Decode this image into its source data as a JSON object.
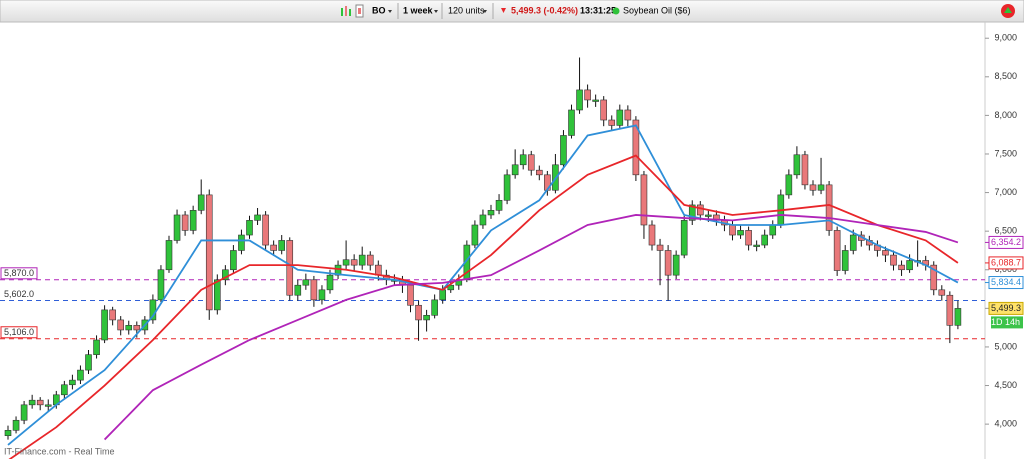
{
  "toolbar": {
    "symbol": "BO",
    "period": "1 week",
    "units": "120 units",
    "price_change": "5,499.3 (-0.42%)",
    "time": "13:31:25",
    "instrument": "Soybean Oil ($6)"
  },
  "footer": "IT-Finance.com - Real Time",
  "chart_data": {
    "type": "candlestick",
    "ylim": [
      3600,
      9210
    ],
    "yticks": [
      {
        "value": 4000,
        "label": "4,000"
      },
      {
        "value": 4500,
        "label": "4,500"
      },
      {
        "value": 5000,
        "label": "5,000"
      },
      {
        "value": 5500,
        "label": "5,500"
      },
      {
        "value": 6000,
        "label": "6,000"
      },
      {
        "value": 6500,
        "label": "6,500"
      },
      {
        "value": 7000,
        "label": "7,000"
      },
      {
        "value": 7500,
        "label": "7,500"
      },
      {
        "value": 8000,
        "label": "8,000"
      },
      {
        "value": 8500,
        "label": "8,500"
      },
      {
        "value": 9000,
        "label": "9,000"
      }
    ],
    "up_color": "#2fc23a",
    "down_color": "#e9787a",
    "open": [
      3850,
      3920,
      4050,
      4250,
      4310,
      4230,
      4250,
      4380,
      4510,
      4570,
      4700,
      4900,
      5090,
      5480,
      5350,
      5220,
      5280,
      5220,
      5350,
      5610,
      6000,
      6380,
      6710,
      6510,
      6770,
      6970,
      5480,
      5870,
      6000,
      6250,
      6450,
      6640,
      6710,
      6320,
      6250,
      6380,
      5670,
      5800,
      5870,
      5610,
      5740,
      5930,
      6060,
      6130,
      6060,
      6190,
      6060,
      5930,
      5850,
      5870,
      5800,
      5540,
      5350,
      5410,
      5610,
      5740,
      5800,
      5870,
      6320,
      6580,
      6710,
      6770,
      6900,
      7230,
      7360,
      7490,
      7290,
      7230,
      7030,
      7360,
      7740,
      8070,
      8330,
      8180,
      8200,
      7940,
      7870,
      8070,
      7940,
      7230,
      6580,
      6320,
      6250,
      5930,
      6190,
      6640,
      6840,
      6690,
      6710,
      6640,
      6580,
      6450,
      6510,
      6300,
      6320,
      6450,
      6580,
      6970,
      7230,
      7490,
      7100,
      7030,
      7100,
      6510,
      5990,
      6250,
      6450,
      6380,
      6320,
      6250,
      6190,
      6060,
      6000,
      6100,
      6120,
      6060,
      5740,
      5670,
      5280
    ],
    "high": [
      3980,
      4100,
      4300,
      4380,
      4350,
      4320,
      4430,
      4560,
      4640,
      4760,
      4960,
      5150,
      5540,
      5520,
      5400,
      5340,
      5330,
      5400,
      5680,
      6060,
      6440,
      6780,
      6760,
      6830,
      7170,
      7040,
      5940,
      6060,
      6320,
      6520,
      6700,
      6800,
      6760,
      6380,
      6450,
      6420,
      5870,
      5950,
      5920,
      5800,
      6000,
      6120,
      6380,
      6200,
      6300,
      6240,
      6120,
      6000,
      5940,
      5920,
      5850,
      5600,
      5480,
      5680,
      5800,
      5870,
      5940,
      6380,
      6640,
      6780,
      6840,
      6980,
      7300,
      7560,
      7560,
      7540,
      7350,
      7280,
      7500,
      7810,
      8140,
      8750,
      8400,
      8270,
      8250,
      8000,
      8140,
      8130,
      7990,
      7280,
      6640,
      6400,
      6320,
      6250,
      6700,
      6900,
      6890,
      6780,
      6770,
      6700,
      6640,
      6580,
      6560,
      6380,
      6520,
      6640,
      7040,
      7300,
      7600,
      7540,
      7160,
      7450,
      7150,
      6560,
      6320,
      6520,
      6500,
      6440,
      6380,
      6300,
      6250,
      6120,
      6200,
      6380,
      6180,
      6110,
      5800,
      5720,
      5600
    ],
    "low": [
      3800,
      3880,
      4000,
      4200,
      4180,
      4170,
      4200,
      4330,
      4450,
      4520,
      4650,
      4850,
      5050,
      5280,
      5150,
      5160,
      5120,
      5160,
      5300,
      5580,
      5960,
      6340,
      6440,
      6460,
      6720,
      5350,
      5420,
      5800,
      5950,
      6200,
      6400,
      6580,
      6250,
      6180,
      6200,
      5600,
      5600,
      5740,
      5520,
      5550,
      5690,
      5880,
      6000,
      5990,
      6000,
      5990,
      5860,
      5800,
      5790,
      5700,
      5450,
      5080,
      5200,
      5370,
      5560,
      5700,
      5740,
      5840,
      6280,
      6530,
      6660,
      6720,
      6850,
      7180,
      7300,
      7220,
      7160,
      6960,
      6990,
      7300,
      7700,
      8020,
      8100,
      8110,
      7860,
      7800,
      7820,
      7860,
      7150,
      6400,
      6250,
      5800,
      5600,
      5880,
      6150,
      6580,
      6640,
      6620,
      6570,
      6500,
      6380,
      6400,
      6250,
      6240,
      6280,
      6400,
      6540,
      6920,
      7180,
      7040,
      6960,
      6980,
      6440,
      5920,
      5940,
      6200,
      6300,
      6250,
      6170,
      6100,
      5990,
      5920,
      5960,
      6040,
      5990,
      5670,
      5600,
      5050,
      5230
    ],
    "close": [
      3920,
      4050,
      4250,
      4310,
      4250,
      4250,
      4380,
      4510,
      4570,
      4700,
      4900,
      5090,
      5480,
      5350,
      5220,
      5280,
      5220,
      5350,
      5610,
      6000,
      6380,
      6710,
      6510,
      6770,
      6970,
      5480,
      5870,
      6000,
      6250,
      6450,
      6640,
      6710,
      6320,
      6250,
      6380,
      5670,
      5800,
      5870,
      5610,
      5740,
      5930,
      6060,
      6130,
      6060,
      6190,
      6060,
      5930,
      5870,
      5870,
      5800,
      5540,
      5350,
      5410,
      5610,
      5740,
      5800,
      5870,
      6320,
      6580,
      6710,
      6770,
      6900,
      7230,
      7360,
      7490,
      7290,
      7230,
      7030,
      7360,
      7740,
      8070,
      8330,
      8200,
      8200,
      7940,
      7870,
      8070,
      7940,
      7230,
      6580,
      6320,
      6250,
      5930,
      6190,
      6640,
      6840,
      6710,
      6710,
      6640,
      6580,
      6450,
      6510,
      6320,
      6320,
      6450,
      6580,
      6970,
      7230,
      7490,
      7100,
      7030,
      7100,
      6510,
      5990,
      6250,
      6450,
      6380,
      6320,
      6250,
      6190,
      6060,
      6000,
      6120,
      6120,
      6060,
      5740,
      5670,
      5280,
      5499.3
    ],
    "series": [
      {
        "color": "#2f8fd8",
        "x": [
          0,
          6,
          12,
          18,
          24,
          30,
          36,
          42,
          48,
          54,
          60,
          66,
          72,
          78,
          84,
          90,
          96,
          102,
          108,
          114,
          118
        ],
        "values": [
          3730,
          4250,
          4700,
          5400,
          6380,
          6380,
          6000,
          5930,
          5870,
          5740,
          6510,
          6900,
          7740,
          7870,
          6710,
          6580,
          6580,
          6640,
          6320,
          6060,
          5834.4
        ],
        "label": "5,834.4"
      },
      {
        "color": "#e8262a",
        "x": [
          0,
          6,
          12,
          18,
          24,
          30,
          36,
          42,
          48,
          54,
          60,
          66,
          72,
          78,
          84,
          90,
          96,
          102,
          108,
          114,
          118
        ],
        "values": [
          3530,
          3960,
          4500,
          5090,
          5740,
          6060,
          6060,
          6000,
          5900,
          5740,
          6190,
          6770,
          7230,
          7480,
          6840,
          6710,
          6770,
          6840,
          6580,
          6380,
          6088.7
        ],
        "label": "6,088.7"
      },
      {
        "color": "#b024b8",
        "x": [
          12,
          18,
          24,
          30,
          36,
          42,
          48,
          54,
          60,
          66,
          72,
          78,
          84,
          90,
          96,
          102,
          108,
          114,
          118
        ],
        "values": [
          3800,
          4440,
          4770,
          5090,
          5350,
          5610,
          5800,
          5830,
          5930,
          6250,
          6580,
          6710,
          6670,
          6640,
          6710,
          6670,
          6580,
          6490,
          6354.2
        ],
        "label": "6,354.2"
      }
    ],
    "hlines": [
      {
        "value": 5870,
        "label": "5,870.0",
        "color": "#b024b8"
      },
      {
        "value": 5602,
        "label": "5,602.0",
        "color": "#2f5fd8"
      },
      {
        "value": 5106,
        "label": "5,106.0",
        "color": "#e8262a"
      }
    ],
    "last_price": {
      "value": 5499.3,
      "label": "5,499.3"
    },
    "countdown": "1D 14h"
  }
}
